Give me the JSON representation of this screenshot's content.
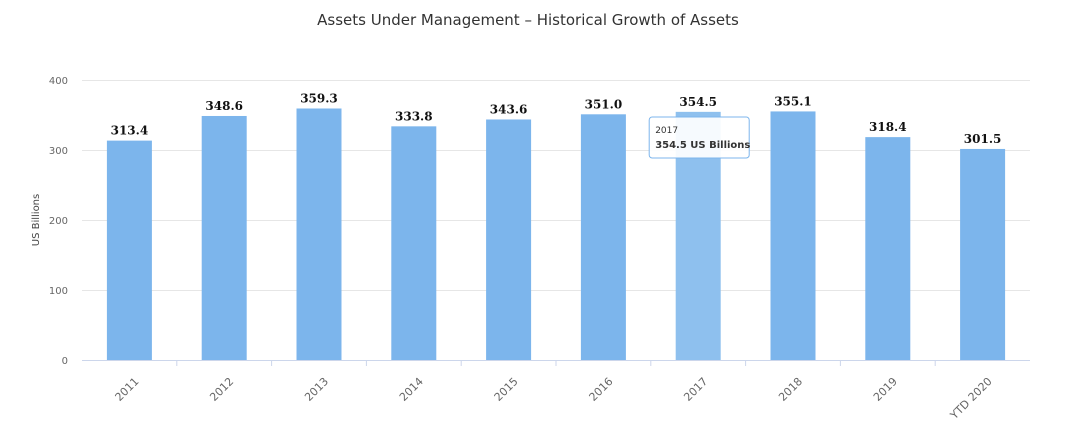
{
  "chart_data": {
    "type": "bar",
    "title": "Assets Under Management – Historical Growth of Assets",
    "ylabel": "US Billions",
    "xlabel": "",
    "ylim": [
      0,
      400
    ],
    "yticks": [
      0,
      100,
      200,
      300,
      400
    ],
    "grid": true,
    "legend": "none",
    "categories": [
      "2011",
      "2012",
      "2013",
      "2014",
      "2015",
      "2016",
      "2017",
      "2018",
      "2019",
      "YTD 2020"
    ],
    "values": [
      313.4,
      348.6,
      359.3,
      333.8,
      343.6,
      351.0,
      354.5,
      355.1,
      318.4,
      301.5
    ],
    "data_labels": [
      "313.4",
      "348.6",
      "359.3",
      "333.8",
      "343.6",
      "351.0",
      "354.5",
      "355.1",
      "318.4",
      "301.5"
    ],
    "bar_color": "#7cb5ec",
    "tooltip": {
      "category": "2017",
      "text": "354.5 US Billions"
    }
  }
}
